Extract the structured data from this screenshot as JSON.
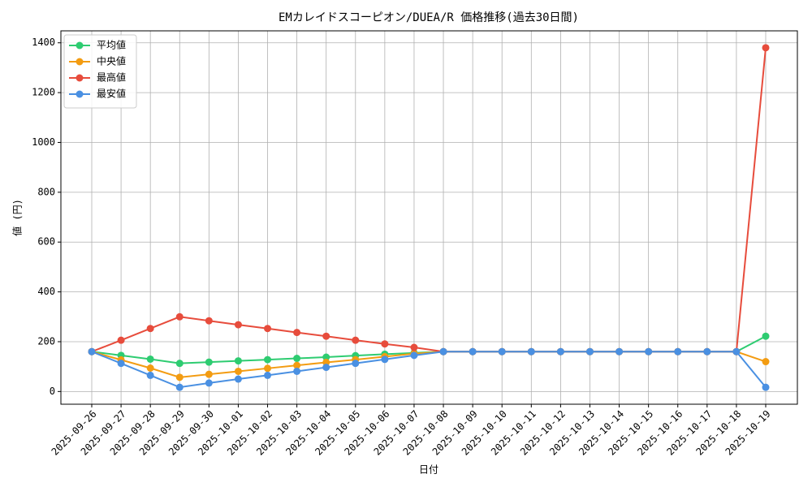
{
  "chart_data": {
    "type": "line",
    "title": "EMカレイドスコーピオン/DUEA/R 価格推移(過去30日間)",
    "x_label": "日付",
    "y_label": "値 (円)",
    "categories": [
      "2025-09-26",
      "2025-09-27",
      "2025-09-28",
      "2025-09-29",
      "2025-09-30",
      "2025-10-01",
      "2025-10-02",
      "2025-10-03",
      "2025-10-04",
      "2025-10-05",
      "2025-10-06",
      "2025-10-07",
      "2025-10-08",
      "2025-10-09",
      "2025-10-10",
      "2025-10-11",
      "2025-10-12",
      "2025-10-13",
      "2025-10-14",
      "2025-10-15",
      "2025-10-16",
      "2025-10-17",
      "2025-10-18",
      "2025-10-19"
    ],
    "series": [
      {
        "name": "平均値",
        "color": "#2ecc71",
        "values": [
          160,
          145,
          130,
          113,
          118,
          123,
          128,
          133,
          138,
          144,
          150,
          155,
          160,
          160,
          160,
          160,
          160,
          160,
          160,
          160,
          160,
          160,
          160,
          222
        ]
      },
      {
        "name": "中央値",
        "color": "#f39c12",
        "values": [
          160,
          127,
          94,
          57,
          69,
          81,
          93,
          105,
          117,
          128,
          140,
          152,
          160,
          160,
          160,
          160,
          160,
          160,
          160,
          160,
          160,
          160,
          160,
          120
        ]
      },
      {
        "name": "最高値",
        "color": "#e74c3c",
        "values": [
          160,
          206,
          253,
          300,
          284,
          268,
          253,
          237,
          222,
          206,
          191,
          177,
          160,
          160,
          160,
          160,
          160,
          160,
          160,
          160,
          160,
          160,
          160,
          1380
        ]
      },
      {
        "name": "最安値",
        "color": "#4a90e2",
        "values": [
          160,
          113,
          65,
          17,
          34,
          50,
          65,
          81,
          97,
          113,
          129,
          145,
          160,
          160,
          160,
          160,
          160,
          160,
          160,
          160,
          160,
          160,
          160,
          17
        ]
      }
    ],
    "ylim": [
      -51,
      1448
    ],
    "yticks": [
      0,
      200,
      400,
      600,
      800,
      1000,
      1200,
      1400
    ],
    "grid": true,
    "legend": "upper-left"
  }
}
